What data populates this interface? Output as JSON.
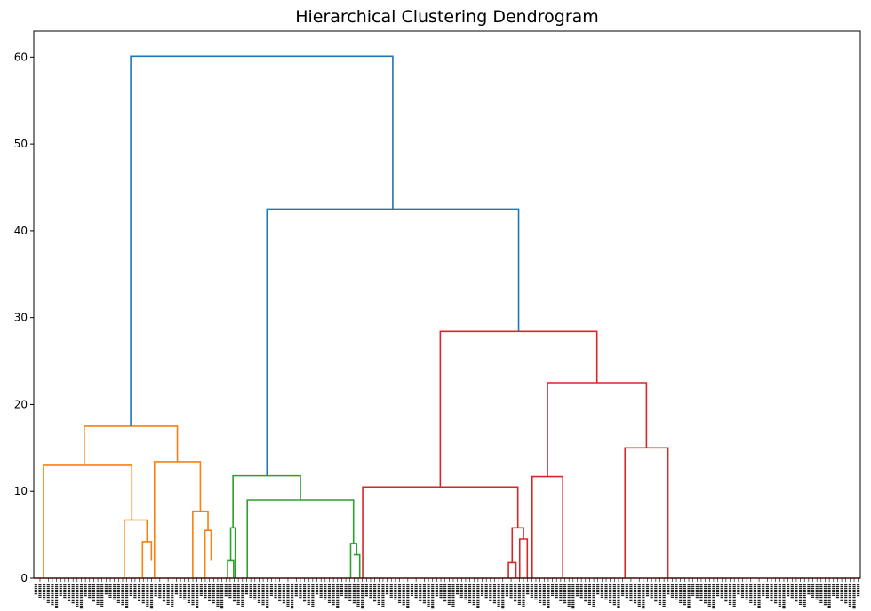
{
  "chart_data": {
    "type": "dendrogram",
    "title": "Hierarchical Clustering Dendrogram",
    "xlabel": "",
    "ylabel": "",
    "ylim": [
      0,
      63
    ],
    "y_ticks": [
      0,
      10,
      20,
      30,
      40,
      50,
      60
    ],
    "x_range": [
      0,
      1000
    ],
    "colors": {
      "above_threshold": "#1f77b4",
      "cluster_1": "#ff7f0e",
      "cluster_2": "#2ca02c",
      "cluster_3": "#d62728"
    },
    "links": [
      {
        "x": [
          11.8,
          11.8,
          118.6,
          118.6
        ],
        "y": [
          0,
          13.0,
          13.0,
          6.7
        ],
        "color": "cluster_1"
      },
      {
        "x": [
          109.5,
          109.5,
          136.9,
          136.9
        ],
        "y": [
          0,
          6.7,
          6.7,
          4.2
        ],
        "color": "cluster_1"
      },
      {
        "x": [
          131.5,
          131.5,
          142.3,
          142.3
        ],
        "y": [
          0,
          4.2,
          4.2,
          2.0
        ],
        "color": "cluster_1"
      },
      {
        "x": [
          146.0,
          146.0,
          201.5,
          201.5
        ],
        "y": [
          0,
          13.4,
          13.4,
          7.7
        ],
        "color": "cluster_1"
      },
      {
        "x": [
          192.3,
          192.3,
          210.8,
          210.8
        ],
        "y": [
          0,
          7.7,
          7.7,
          5.5
        ],
        "color": "cluster_1"
      },
      {
        "x": [
          207.1,
          207.1,
          214.5,
          214.5
        ],
        "y": [
          0,
          5.5,
          5.5,
          2.0
        ],
        "color": "cluster_1"
      },
      {
        "x": [
          61.1,
          61.1,
          173.7,
          173.7
        ],
        "y": [
          13.0,
          17.5,
          17.5,
          13.4
        ],
        "color": "cluster_1"
      },
      {
        "x": [
          234.5,
          234.5,
          241.8,
          241.8
        ],
        "y": [
          0,
          2.0,
          2.0,
          0
        ],
        "color": "cluster_2"
      },
      {
        "x": [
          238.2,
          238.2,
          243.7,
          243.7
        ],
        "y": [
          2.0,
          5.8,
          5.8,
          0
        ],
        "color": "cluster_2"
      },
      {
        "x": [
          383.3,
          383.3,
          390.6,
          390.6
        ],
        "y": [
          0,
          4.0,
          4.0,
          2.7
        ],
        "color": "cluster_2"
      },
      {
        "x": [
          387.0,
          387.0,
          394.3,
          394.3
        ],
        "y": [
          2.7,
          2.7,
          2.7,
          0
        ],
        "color": "cluster_2"
      },
      {
        "x": [
          258.3,
          258.3,
          386.8,
          386.8
        ],
        "y": [
          0,
          9.0,
          9.0,
          4.0
        ],
        "color": "cluster_2"
      },
      {
        "x": [
          241.0,
          241.0,
          322.6,
          322.6
        ],
        "y": [
          5.8,
          11.8,
          11.8,
          9.0
        ],
        "color": "cluster_2"
      },
      {
        "x": [
          574.3,
          574.3,
          583.4,
          583.4
        ],
        "y": [
          0,
          1.8,
          1.8,
          0
        ],
        "color": "cluster_3"
      },
      {
        "x": [
          578.8,
          578.8,
          592.5,
          592.5
        ],
        "y": [
          1.8,
          5.8,
          5.8,
          4.5
        ],
        "color": "cluster_3"
      },
      {
        "x": [
          587.9,
          587.9,
          597.1,
          597.1
        ],
        "y": [
          0,
          4.5,
          4.5,
          0
        ],
        "color": "cluster_3"
      },
      {
        "x": [
          397.9,
          397.9,
          585.7,
          585.7
        ],
        "y": [
          0,
          10.5,
          10.5,
          5.8
        ],
        "color": "cluster_3"
      },
      {
        "x": [
          603.0,
          603.0,
          640.0,
          640.0
        ],
        "y": [
          0,
          11.7,
          11.7,
          0
        ],
        "color": "cluster_3"
      },
      {
        "x": [
          715.3,
          715.3,
          767.3,
          767.3
        ],
        "y": [
          0,
          15.0,
          15.0,
          0
        ],
        "color": "cluster_3"
      },
      {
        "x": [
          621.5,
          621.5,
          741.3,
          741.3
        ],
        "y": [
          11.7,
          22.5,
          22.5,
          15.0
        ],
        "color": "cluster_3"
      },
      {
        "x": [
          491.8,
          491.8,
          681.4,
          681.4
        ],
        "y": [
          10.5,
          28.4,
          28.4,
          22.5
        ],
        "color": "cluster_3"
      },
      {
        "x": [
          282.0,
          282.0,
          586.6,
          586.6
        ],
        "y": [
          11.8,
          42.5,
          42.5,
          28.4
        ],
        "color": "above_threshold"
      },
      {
        "x": [
          117.3,
          117.3,
          434.3,
          434.3
        ],
        "y": [
          17.5,
          60.1,
          60.1,
          42.5
        ],
        "color": "above_threshold"
      }
    ],
    "baseline": {
      "x": [
        0,
        1000
      ],
      "y": 0,
      "color": "cluster_3"
    },
    "leaf_label_count": 200
  }
}
